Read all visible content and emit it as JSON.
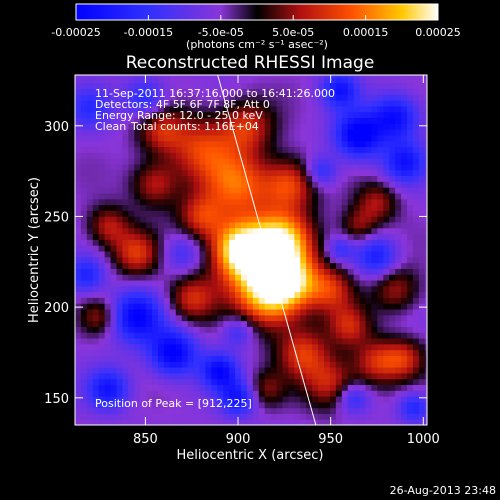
{
  "chart_data": {
    "type": "heatmap",
    "title": "Reconstructed RHESSI Image",
    "xlabel": "Heliocentric X (arcsec)",
    "ylabel": "Heliocentric Y (arcsec)",
    "xlim": [
      812,
      1002
    ],
    "ylim": [
      135,
      328
    ],
    "xticks": [
      850,
      900,
      950,
      1000
    ],
    "yticks": [
      150,
      200,
      250,
      300
    ],
    "colorbar": {
      "range": [
        -0.00025,
        0.00025
      ],
      "tick_labels": [
        "-0.00025",
        "-0.00015",
        "-5.0e-05",
        "5.0e-05",
        "0.00015",
        "0.00025"
      ],
      "label": "(photons cm⁻² s⁻¹ asec⁻²)"
    },
    "annotations": {
      "time": "11-Sep-2011 16:37:16.000 to 16:41:26.000",
      "detectors": "Detectors: 4F 5F 6F 7F 8F, Att 0",
      "energy": "Energy Range: 12.0 - 25.0 keV",
      "algorithm": "Clean",
      "counts": "Total counts: 1.16E+04",
      "peak": "Position of Peak = [912,225]"
    },
    "peak": [
      912,
      225
    ],
    "limb_line": [
      [
        889,
        328
      ],
      [
        942,
        135
      ]
    ],
    "blobs": [
      {
        "x": 912,
        "y": 225,
        "s": 16,
        "a": 1.0
      },
      {
        "x": 900,
        "y": 233,
        "s": 10,
        "a": 0.75
      },
      {
        "x": 925,
        "y": 238,
        "s": 11,
        "a": 0.7
      },
      {
        "x": 918,
        "y": 205,
        "s": 12,
        "a": 0.75
      },
      {
        "x": 930,
        "y": 215,
        "s": 10,
        "a": 0.6
      },
      {
        "x": 900,
        "y": 268,
        "s": 13,
        "a": 0.7
      },
      {
        "x": 928,
        "y": 268,
        "s": 10,
        "a": 0.65
      },
      {
        "x": 880,
        "y": 288,
        "s": 13,
        "a": 0.6
      },
      {
        "x": 905,
        "y": 300,
        "s": 10,
        "a": 0.55
      },
      {
        "x": 858,
        "y": 298,
        "s": 9,
        "a": 0.5
      },
      {
        "x": 855,
        "y": 268,
        "s": 9,
        "a": 0.5
      },
      {
        "x": 845,
        "y": 230,
        "s": 9,
        "a": 0.6
      },
      {
        "x": 830,
        "y": 245,
        "s": 8,
        "a": 0.5
      },
      {
        "x": 880,
        "y": 250,
        "s": 9,
        "a": 0.55
      },
      {
        "x": 875,
        "y": 205,
        "s": 9,
        "a": 0.55
      },
      {
        "x": 950,
        "y": 210,
        "s": 9,
        "a": 0.55
      },
      {
        "x": 960,
        "y": 190,
        "s": 8,
        "a": 0.5
      },
      {
        "x": 935,
        "y": 175,
        "s": 10,
        "a": 0.6
      },
      {
        "x": 950,
        "y": 158,
        "s": 10,
        "a": 0.55
      },
      {
        "x": 975,
        "y": 170,
        "s": 9,
        "a": 0.55
      },
      {
        "x": 990,
        "y": 172,
        "s": 8,
        "a": 0.5
      },
      {
        "x": 985,
        "y": 210,
        "s": 9,
        "a": 0.45
      },
      {
        "x": 975,
        "y": 258,
        "s": 8,
        "a": 0.45
      },
      {
        "x": 965,
        "y": 245,
        "s": 7,
        "a": 0.4
      },
      {
        "x": 915,
        "y": 155,
        "s": 7,
        "a": 0.35
      },
      {
        "x": 825,
        "y": 195,
        "s": 7,
        "a": 0.4
      },
      {
        "x": 870,
        "y": 230,
        "s": 8,
        "a": -0.35
      },
      {
        "x": 845,
        "y": 195,
        "s": 10,
        "a": -0.75
      },
      {
        "x": 865,
        "y": 175,
        "s": 9,
        "a": -0.8
      },
      {
        "x": 890,
        "y": 165,
        "s": 7,
        "a": -0.7
      },
      {
        "x": 900,
        "y": 150,
        "s": 7,
        "a": -0.6
      },
      {
        "x": 830,
        "y": 155,
        "s": 8,
        "a": -0.6
      },
      {
        "x": 818,
        "y": 218,
        "s": 7,
        "a": -0.5
      },
      {
        "x": 965,
        "y": 295,
        "s": 9,
        "a": -0.85
      },
      {
        "x": 985,
        "y": 305,
        "s": 9,
        "a": -0.7
      },
      {
        "x": 990,
        "y": 280,
        "s": 8,
        "a": -0.6
      },
      {
        "x": 955,
        "y": 320,
        "s": 7,
        "a": -0.6
      },
      {
        "x": 945,
        "y": 275,
        "s": 6,
        "a": -0.45
      },
      {
        "x": 975,
        "y": 228,
        "s": 8,
        "a": -0.55
      },
      {
        "x": 962,
        "y": 150,
        "s": 6,
        "a": -0.45
      },
      {
        "x": 995,
        "y": 145,
        "s": 6,
        "a": -0.5
      },
      {
        "x": 850,
        "y": 315,
        "s": 8,
        "a": -0.5
      },
      {
        "x": 820,
        "y": 310,
        "s": 8,
        "a": -0.4
      },
      {
        "x": 900,
        "y": 187,
        "s": 6,
        "a": -0.4
      },
      {
        "x": 955,
        "y": 232,
        "s": 5,
        "a": -0.35
      }
    ]
  },
  "footer": {
    "timestamp": "26-Aug-2013 23:48"
  }
}
